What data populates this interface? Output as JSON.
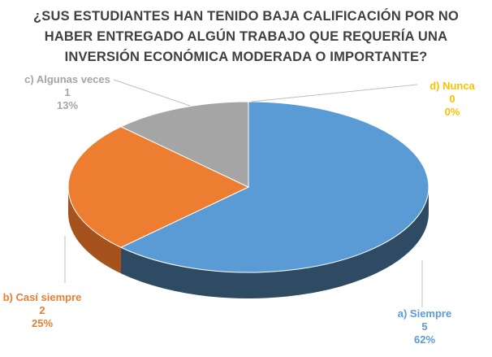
{
  "chart_data": {
    "type": "pie",
    "title_lines": [
      "¿SUS ESTUDIANTES HAN TENIDO BAJA CALIFICACIÓN POR NO",
      "HABER ENTREGADO ALGÚN TRABAJO QUE REQUERÍA UNA",
      "INVERSIÓN ECONÓMICA MODERADA O IMPORTANTE?"
    ],
    "three_d": true,
    "slices": [
      {
        "label": "a) Siempre",
        "value": "5",
        "percent": "62%",
        "color": "#5b9bd5",
        "side_color": "#2f4a63",
        "label_color": "#5b9bd5"
      },
      {
        "label": "b) Casí siempre",
        "value": "2",
        "percent": "25%",
        "color": "#ed7d31",
        "side_color": "#a5521c",
        "label_color": "#ed7d31"
      },
      {
        "label": "c) Algunas veces",
        "value": "1",
        "percent": "13%",
        "color": "#a5a5a5",
        "side_color": "#6f6f6f",
        "label_color": "#a5a5a5"
      },
      {
        "label": "d) Nunca",
        "value": "0",
        "percent": "0%",
        "color": "#ffc000",
        "side_color": "#b38600",
        "label_color": "#ffc000"
      }
    ]
  }
}
